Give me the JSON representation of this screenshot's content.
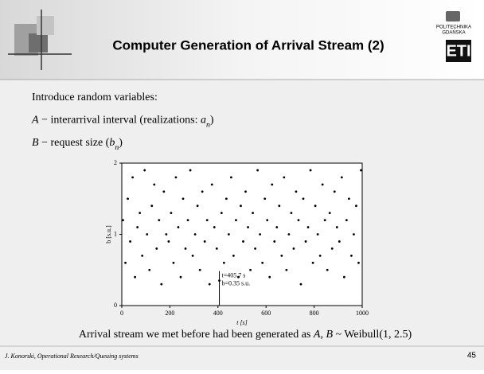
{
  "header": {
    "title": "Computer Generation of Arrival Stream (2)",
    "logo_top": "POLITECHNIKA",
    "logo_bottom": "GDAŃSKA",
    "logo_mark": "ETI"
  },
  "body": {
    "lines": [
      [
        {
          "text": "Introduce random variables:",
          "style": "normal"
        }
      ],
      [
        {
          "text": "A",
          "style": "italic"
        },
        {
          "text": " − interarrival interval (realizations: ",
          "style": "normal"
        },
        {
          "text": "a",
          "style": "italic"
        },
        {
          "text": "n",
          "style": "sub"
        },
        {
          "text": ")",
          "style": "normal"
        }
      ],
      [
        {
          "text": "B",
          "style": "italic"
        },
        {
          "text": " − request size (",
          "style": "normal"
        },
        {
          "text": "b",
          "style": "italic"
        },
        {
          "text": "n",
          "style": "sub"
        },
        {
          "text": ")",
          "style": "normal"
        }
      ]
    ],
    "caption": [
      {
        "text": "Arrival stream we met before had been generated as ",
        "style": "normal"
      },
      {
        "text": "A",
        "style": "italic"
      },
      {
        "text": ", ",
        "style": "normal"
      },
      {
        "text": "B",
        "style": "italic"
      },
      {
        "text": " ~ Weibull(1, 2.5)",
        "style": "normal"
      }
    ]
  },
  "chart_data": {
    "type": "scatter",
    "x_label": "t [s]",
    "y_label": "b [s.u.]",
    "color": "#000000",
    "xlim": [
      0,
      1000
    ],
    "xticks": [
      0,
      200,
      400,
      600,
      800,
      1000
    ],
    "ylim": [
      0,
      2
    ],
    "yticks": [
      0,
      1,
      2
    ],
    "x": [
      5,
      15,
      25,
      35,
      45,
      55,
      65,
      75,
      85,
      95,
      105,
      115,
      125,
      135,
      145,
      155,
      165,
      175,
      185,
      195,
      205,
      215,
      225,
      235,
      245,
      255,
      265,
      275,
      285,
      295,
      305,
      315,
      325,
      335,
      345,
      355,
      365,
      375,
      385,
      395,
      405.7,
      415,
      425,
      435,
      445,
      455,
      465,
      475,
      485,
      495,
      505,
      515,
      525,
      535,
      545,
      555,
      565,
      575,
      585,
      595,
      605,
      615,
      625,
      635,
      645,
      655,
      665,
      675,
      685,
      695,
      705,
      715,
      725,
      735,
      745,
      755,
      765,
      775,
      785,
      795,
      805,
      815,
      825,
      835,
      845,
      855,
      865,
      875,
      885,
      895,
      905,
      915,
      925,
      935,
      945,
      955,
      965,
      975,
      985,
      995
    ],
    "values": [
      1.2,
      0.6,
      1.5,
      0.9,
      1.8,
      0.4,
      1.1,
      1.3,
      0.7,
      1.9,
      1.0,
      0.5,
      1.4,
      1.7,
      0.8,
      1.2,
      0.3,
      1.6,
      1.0,
      0.9,
      1.3,
      0.6,
      1.8,
      1.1,
      0.4,
      1.5,
      0.8,
      1.2,
      1.9,
      0.7,
      1.0,
      1.4,
      0.5,
      1.6,
      0.9,
      1.2,
      0.3,
      1.7,
      1.1,
      0.8,
      0.35,
      1.3,
      0.6,
      1.5,
      1.0,
      1.8,
      0.7,
      1.2,
      0.4,
      1.4,
      0.9,
      1.6,
      1.1,
      0.5,
      1.3,
      0.8,
      1.9,
      1.0,
      0.6,
      1.5,
      1.2,
      0.4,
      1.7,
      0.9,
      1.1,
      1.4,
      0.7,
      1.8,
      0.5,
      1.0,
      1.3,
      0.8,
      1.6,
      1.2,
      0.3,
      1.5,
      0.9,
      1.1,
      1.9,
      0.6,
      1.4,
      1.0,
      0.7,
      1.7,
      1.2,
      0.5,
      1.3,
      0.8,
      1.6,
      1.1,
      0.9,
      1.8,
      0.4,
      1.2,
      1.5,
      0.7,
      1.0,
      1.4,
      0.6,
      1.9
    ],
    "annotation": {
      "x": 405.7,
      "y": 0.35,
      "lines": [
        "t=405.7 s",
        "b=0.35 s.u."
      ]
    }
  },
  "footer": {
    "author": "J. Konorski, Operational Research/Queuing systems",
    "page": "45"
  }
}
